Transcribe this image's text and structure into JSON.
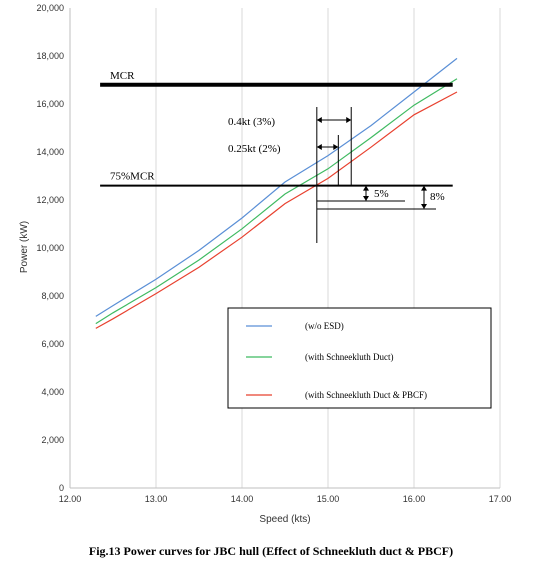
{
  "caption": "Fig.13 Power curves for JBC hull (Effect of Schneekluth duct & PBCF)",
  "chart_data": {
    "type": "line",
    "xlabel": "Speed (kts)",
    "ylabel": "Power (kW)",
    "xlim": [
      12.0,
      17.0
    ],
    "ylim": [
      0,
      20000
    ],
    "x_ticks": [
      "12.00",
      "13.00",
      "14.00",
      "15.00",
      "16.00",
      "17.00"
    ],
    "y_ticks": [
      "0",
      "2,000",
      "4,000",
      "6,000",
      "8,000",
      "10,000",
      "12,000",
      "14,000",
      "16,000",
      "18,000",
      "20,000"
    ],
    "grid": "vertical",
    "series": [
      {
        "name": "(w/o ESD)",
        "color": "#5a8fd6",
        "x": [
          12.3,
          12.5,
          13.0,
          13.5,
          14.0,
          14.5,
          15.0,
          15.5,
          16.0,
          16.5
        ],
        "y": [
          7150,
          7600,
          8700,
          9900,
          11250,
          12750,
          13850,
          15100,
          16500,
          17900
        ]
      },
      {
        "name": "(with Schneekluth Duct)",
        "color": "#3fba61",
        "x": [
          12.3,
          12.5,
          13.0,
          13.5,
          14.0,
          14.5,
          15.0,
          15.5,
          16.0,
          16.5
        ],
        "y": [
          6850,
          7300,
          8350,
          9500,
          10800,
          12250,
          13300,
          14600,
          15950,
          17050
        ]
      },
      {
        "name": "(with Schneekluth Duct & PBCF)",
        "color": "#e8412f",
        "x": [
          12.3,
          12.5,
          13.0,
          13.5,
          14.0,
          14.5,
          15.0,
          15.5,
          16.0,
          16.5
        ],
        "y": [
          6650,
          7050,
          8100,
          9200,
          10450,
          11850,
          12900,
          14200,
          15550,
          16500
        ]
      }
    ],
    "reference_lines": [
      {
        "label": "MCR",
        "y": 16800,
        "x_from": 12.35,
        "x_to": 16.45
      },
      {
        "label": "75%MCR",
        "y": 12600,
        "x_from": 12.35,
        "x_to": 16.45
      }
    ],
    "annotations": [
      {
        "text": "0.4kt (3%)",
        "x": 14.87,
        "x_to": 15.27
      },
      {
        "text": "0.25kt (2%)",
        "x": 14.87,
        "x_to": 15.12
      },
      {
        "text": "5%"
      },
      {
        "text": "8%"
      }
    ],
    "legend_position": "lower-right"
  }
}
